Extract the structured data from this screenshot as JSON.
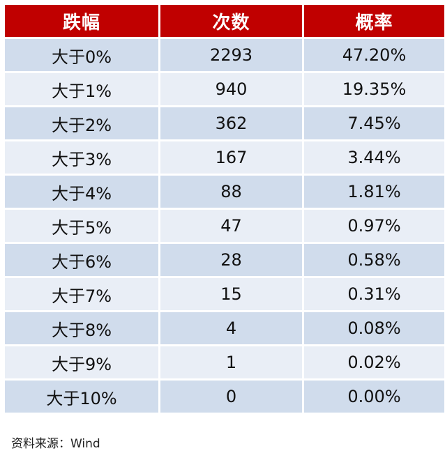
{
  "table": {
    "headers": [
      "跌幅",
      "次数",
      "概率"
    ],
    "rows": [
      [
        "大于0%",
        "2293",
        "47.20%"
      ],
      [
        "大于1%",
        "940",
        "19.35%"
      ],
      [
        "大于2%",
        "362",
        "7.45%"
      ],
      [
        "大于3%",
        "167",
        "3.44%"
      ],
      [
        "大于4%",
        "88",
        "1.81%"
      ],
      [
        "大于5%",
        "47",
        "0.97%"
      ],
      [
        "大于6%",
        "28",
        "0.58%"
      ],
      [
        "大于7%",
        "15",
        "0.31%"
      ],
      [
        "大于8%",
        "4",
        "0.08%"
      ],
      [
        "大于9%",
        "1",
        "0.02%"
      ],
      [
        "大于10%",
        "0",
        "0.00%"
      ]
    ]
  },
  "source": "资料来源：Wind",
  "colors": {
    "header_bg": "#c00000",
    "row_dark": "#d0dcec",
    "row_light": "#e9eef6"
  }
}
